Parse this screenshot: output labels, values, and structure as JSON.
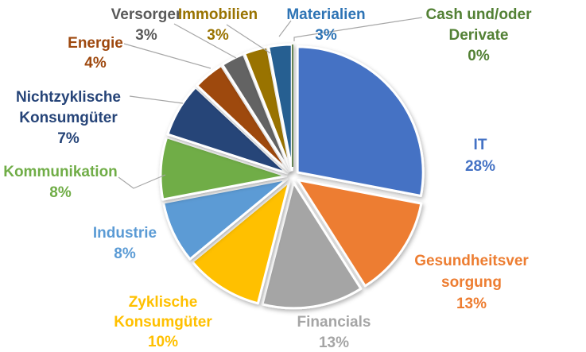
{
  "chart_data": {
    "type": "pie",
    "title": "",
    "unit": "%",
    "total": 100,
    "start_angle_deg": 0,
    "direction": "clockwise",
    "legend_position": "none",
    "grid": false,
    "explosion": "all slices exploded outward from center",
    "label_style": "category name and percent outside pie, text colored like slice",
    "background_color": "#FFFFFF",
    "leader_line_color": "#A6A6A6",
    "categories": [
      "IT",
      "Gesundheitsversorgung",
      "Financials",
      "Zyklische Konsumgüter",
      "Industrie",
      "Kommunikation",
      "Nichtzyklische Konsumgüter",
      "Energie",
      "Versorger",
      "Immobilien",
      "Materialien",
      "Cash und/oder Derivate"
    ],
    "values": [
      28,
      13,
      13,
      10,
      8,
      8,
      7,
      4,
      3,
      3,
      3,
      0
    ],
    "slices": [
      {
        "label": "IT",
        "value": 28,
        "pct": "28%",
        "color": "#4472C4",
        "label_color": "#4472C4",
        "label_lines": [
          "IT",
          "28%"
        ]
      },
      {
        "label": "Gesundheitsversorgung",
        "value": 13,
        "pct": "13%",
        "color": "#ED7D31",
        "label_color": "#ED7D31",
        "label_lines": [
          "Gesundheitsver",
          "sorgung",
          "13%"
        ]
      },
      {
        "label": "Financials",
        "value": 13,
        "pct": "13%",
        "color": "#A5A5A5",
        "label_color": "#A5A5A5",
        "label_lines": [
          "Financials",
          "13%"
        ]
      },
      {
        "label": "Zyklische Konsumgüter",
        "value": 10,
        "pct": "10%",
        "color": "#FFC000",
        "label_color": "#FFC000",
        "label_lines": [
          "Zyklische",
          "Konsumgüter",
          "10%"
        ]
      },
      {
        "label": "Industrie",
        "value": 8,
        "pct": "8%",
        "color": "#5B9BD5",
        "label_color": "#5B9BD5",
        "label_lines": [
          "Industrie",
          "8%"
        ]
      },
      {
        "label": "Kommunikation",
        "value": 8,
        "pct": "8%",
        "color": "#70AD47",
        "label_color": "#70AD47",
        "label_lines": [
          "Kommunikation",
          "8%"
        ]
      },
      {
        "label": "Nichtzyklische Konsumgüter",
        "value": 7,
        "pct": "7%",
        "color": "#264478",
        "label_color": "#264478",
        "label_lines": [
          "Nichtzyklische",
          "Konsumgüter",
          "7%"
        ]
      },
      {
        "label": "Energie",
        "value": 4,
        "pct": "4%",
        "color": "#9E480E",
        "label_color": "#9E480E",
        "label_lines": [
          "Energie",
          "4%"
        ]
      },
      {
        "label": "Versorger",
        "value": 3,
        "pct": "3%",
        "color": "#636363",
        "label_color": "#595959",
        "label_lines": [
          "Versorger",
          "3%"
        ]
      },
      {
        "label": "Immobilien",
        "value": 3,
        "pct": "3%",
        "color": "#997300",
        "label_color": "#997300",
        "label_lines": [
          "Immobilien",
          "3%"
        ]
      },
      {
        "label": "Materialien",
        "value": 3,
        "pct": "3%",
        "color": "#255E91",
        "label_color": "#2E74B5",
        "label_lines": [
          "Materialien",
          "3%"
        ]
      },
      {
        "label": "Cash und/oder Derivate",
        "value": 0,
        "pct": "0%",
        "color": "#43682B",
        "label_color": "#538135",
        "label_lines": [
          "Cash und/oder",
          "Derivate",
          "0%"
        ]
      }
    ]
  }
}
